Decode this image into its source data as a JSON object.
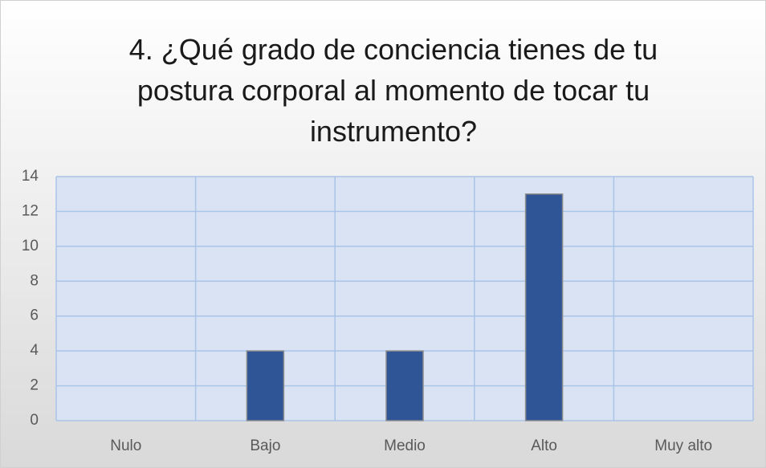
{
  "chart_data": {
    "type": "bar",
    "title": "4.  ¿Qué grado de conciencia tienes de tu postura corporal al momento de tocar tu instrumento?",
    "categories": [
      "Nulo",
      "Bajo",
      "Medio",
      "Alto",
      "Muy alto"
    ],
    "values": [
      0,
      4,
      4,
      13,
      0
    ],
    "color": "#2f5597",
    "ylim": [
      0,
      14
    ],
    "yticks": [
      0,
      2,
      4,
      6,
      8,
      10,
      12,
      14
    ],
    "grid": true
  }
}
